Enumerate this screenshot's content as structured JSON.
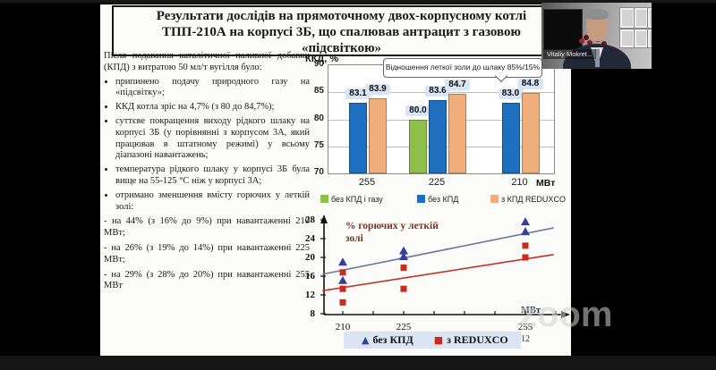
{
  "meeting": {
    "participant_name": "Vitaliy Mokret...",
    "watermark": "zoom"
  },
  "slide": {
    "page_number": "12",
    "title_lines": [
      "Результати дослідів на прямоточному двох-корпусному котлі",
      "ТПП-210А на корпусі 3Б, що спалював антрацит з газовою",
      "«підсвіткою»"
    ],
    "body": {
      "intro": "Після подавання каталітичної паливної добавки (КПД) з витратою 50 мл/т вугілля було:",
      "bullets": [
        "припинено подачу природного газу на «підсвітку»;",
        "ККД котла зріс на 4,7% (з 80 до 84,7%);",
        "суттєве покращення виходу рідкого шлаку на корпусі 3Б (у порівнянні з корпусом 3А, який працював в штатному режимі) у всьому діапазоні навантажень;",
        "температура рідкого шлаку у корпусі 3Б була вище на 55-125 °С ніж у корпусі 3А;",
        "отримано зменшення вмісту горючих у леткій золі:"
      ],
      "sub_items": [
        "- на 44% (з 16% до 9%) при навантаженні 210 МВт;",
        "- на 26% (з 19% до 14%) при навантаженні 225 МВт;",
        "- на 29% (з 28% до 20%) при навантаженні 255 МВт"
      ]
    }
  },
  "chart_data": [
    {
      "type": "bar",
      "ylabel": "ККД, %",
      "xlabel": "МВт",
      "categories": [
        "255",
        "225",
        "210"
      ],
      "series": [
        {
          "name": "без КПД і газу",
          "color": "#8cc04a",
          "values": [
            null,
            80.0,
            null
          ]
        },
        {
          "name": "без КПД",
          "color": "#1e6fc0",
          "values": [
            83.1,
            83.6,
            83.0
          ]
        },
        {
          "name": "з КПД REDUXCO",
          "color": "#efae7c",
          "values": [
            83.9,
            84.7,
            84.8
          ]
        }
      ],
      "ylim": [
        70,
        90
      ],
      "yticks": [
        90,
        85,
        80,
        75,
        70
      ],
      "annotation": "Відношення леткої золи до шлаку 85%/15%",
      "legend_position": "bottom",
      "grid": true
    },
    {
      "type": "scatter",
      "title": "% горючих у леткій золі",
      "xlabel": "МВт",
      "xticks": [
        210,
        225,
        255
      ],
      "yticks": [
        28,
        24,
        20,
        16,
        12,
        8
      ],
      "ylim": [
        8,
        28
      ],
      "xlim": [
        205,
        262
      ],
      "series": [
        {
          "name": "без КПД",
          "marker": "triangle",
          "color": "#333f9e",
          "trend_color": "#6b7b9e",
          "points": [
            [
              210,
              19.0
            ],
            [
              210,
              15.1
            ],
            [
              225,
              21.4
            ],
            [
              225,
              20.2
            ],
            [
              255,
              27.6
            ],
            [
              255,
              25.5
            ]
          ],
          "trend": [
            [
              205,
              16.4
            ],
            [
              262,
              26.3
            ]
          ]
        },
        {
          "name": "з REDUXCO",
          "marker": "square",
          "color": "#cc2a1e",
          "trend_color": "#c13427",
          "points": [
            [
              210,
              16.8
            ],
            [
              210,
              13.3
            ],
            [
              210,
              10.4
            ],
            [
              225,
              17.8
            ],
            [
              225,
              13.3
            ],
            [
              255,
              22.5
            ],
            [
              255,
              20.0
            ]
          ],
          "trend": [
            [
              205,
              12.9
            ],
            [
              262,
              20.6
            ]
          ]
        }
      ],
      "legend_position": "bottom"
    }
  ]
}
